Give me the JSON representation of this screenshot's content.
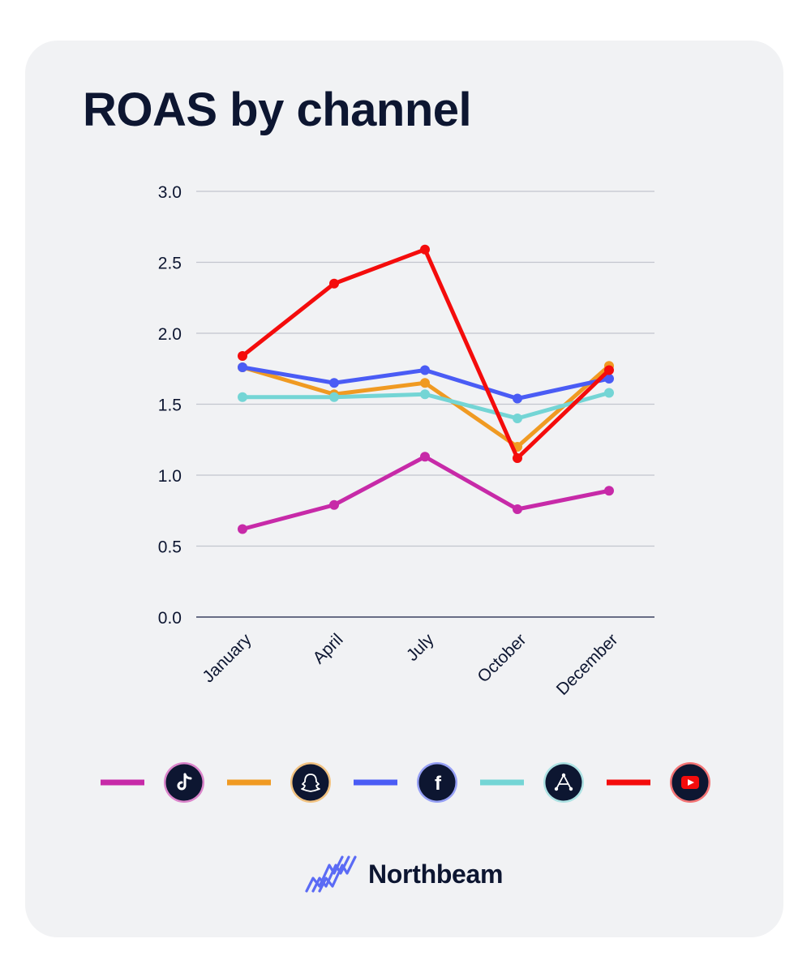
{
  "chart_data": {
    "type": "line",
    "title": "ROAS by channel",
    "categories": [
      "January",
      "April",
      "July",
      "October",
      "December"
    ],
    "ylim": [
      0,
      3
    ],
    "yticks": [
      "0.0",
      "0.5",
      "1.0",
      "1.5",
      "2.0",
      "2.5",
      "3.0"
    ],
    "grid": true,
    "legend_position": "bottom",
    "series": [
      {
        "icon": "tiktok-icon",
        "color": "#c72aa8",
        "values": [
          0.62,
          0.79,
          1.13,
          0.76,
          0.89
        ]
      },
      {
        "icon": "snapchat-icon",
        "color": "#f09a22",
        "values": [
          1.76,
          1.57,
          1.65,
          1.2,
          1.77
        ]
      },
      {
        "icon": "facebook-icon",
        "color": "#4a5cf5",
        "values": [
          1.76,
          1.65,
          1.74,
          1.54,
          1.68
        ]
      },
      {
        "icon": "applovin-icon",
        "color": "#74d5d5",
        "values": [
          1.55,
          1.55,
          1.57,
          1.4,
          1.58
        ]
      },
      {
        "icon": "youtube-icon",
        "color": "#f40c0c",
        "values": [
          1.84,
          2.35,
          2.59,
          1.12,
          1.74
        ]
      }
    ]
  },
  "brand": {
    "name": "Northbeam",
    "accent": "#5b6bf5"
  }
}
